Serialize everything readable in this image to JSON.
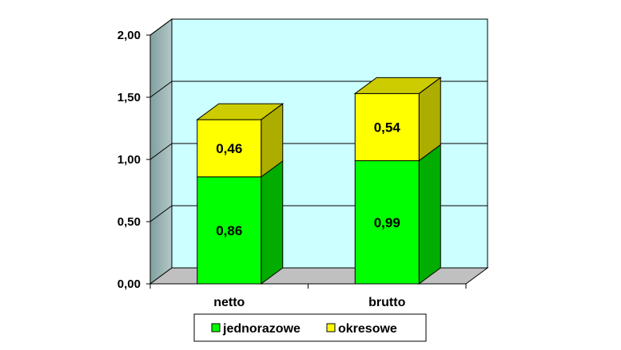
{
  "chart_data": {
    "type": "bar",
    "stacked": true,
    "three_d": true,
    "categories": [
      "netto",
      "brutto"
    ],
    "series": [
      {
        "name": "jednorazowe",
        "values": [
          0.86,
          0.99
        ],
        "labels": [
          "0,86",
          "0,99"
        ],
        "color": "#00ff00"
      },
      {
        "name": "okresowe",
        "values": [
          0.46,
          0.54
        ],
        "labels": [
          "0,46",
          "0,54"
        ],
        "color": "#ffff00"
      }
    ],
    "ylim": [
      0,
      2
    ],
    "yticks": [
      0,
      0.5,
      1.0,
      1.5,
      2.0
    ],
    "ytick_labels": [
      "0,00",
      "0,50",
      "1,00",
      "1,50",
      "2,00"
    ],
    "grid": true,
    "legend_position": "bottom",
    "colors": {
      "wall_back": "#ccffff",
      "wall_side": "#999999",
      "floor": "#c0c0c0"
    }
  }
}
